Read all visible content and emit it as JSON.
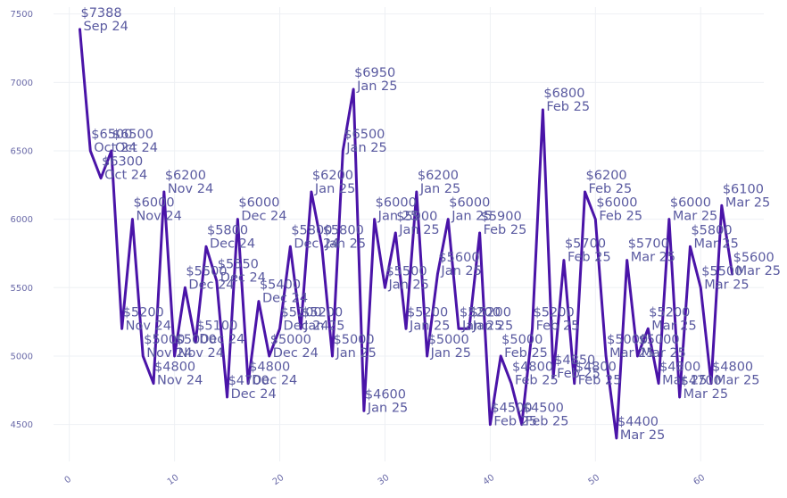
{
  "chart_data": {
    "type": "line",
    "title": "",
    "xlabel": "",
    "ylabel": "",
    "xlim": [
      -1.5,
      66
    ],
    "ylim": [
      4230,
      7550
    ],
    "xticks": [
      0,
      10,
      20,
      30,
      40,
      50,
      60
    ],
    "yticks": [
      4500,
      5000,
      5500,
      6000,
      6500,
      7000,
      7500
    ],
    "grid": true,
    "legend": "none",
    "line_color": "#4a14a8",
    "label_color": "#5a5aa0",
    "tick_color": "#6a6aa8",
    "series": [
      {
        "x": [
          1,
          2,
          3,
          4,
          5,
          6,
          7,
          8,
          9,
          10,
          11,
          12,
          13,
          14,
          15,
          16,
          17,
          18,
          19,
          20,
          21,
          22,
          23,
          24,
          25,
          26,
          27,
          28,
          29,
          30,
          31,
          32,
          33,
          34,
          35,
          36,
          37,
          38,
          39,
          40,
          41,
          42,
          43,
          44,
          45,
          46,
          47,
          48,
          49,
          50,
          51,
          52,
          53,
          54,
          55,
          56,
          57,
          58,
          59,
          60,
          61,
          62,
          63
        ],
        "y": [
          7388,
          6500,
          6300,
          6500,
          5200,
          6000,
          5000,
          4800,
          6200,
          5000,
          5500,
          5100,
          5800,
          5550,
          4700,
          6000,
          4800,
          5400,
          5000,
          5200,
          5800,
          5200,
          6200,
          5800,
          5000,
          6500,
          6950,
          4600,
          6000,
          5500,
          5900,
          5200,
          6200,
          5000,
          5600,
          6000,
          5200,
          5200,
          5900,
          4500,
          5000,
          4800,
          4500,
          5200,
          6800,
          4850,
          5700,
          4800,
          6200,
          6000,
          5000,
          4400,
          5700,
          5000,
          5200,
          4800,
          6000,
          4700,
          5800,
          5500,
          4800,
          6100,
          5600
        ],
        "labels": [
          [
            "$7388",
            "Sep 24"
          ],
          [
            "$6500",
            "Oct 24"
          ],
          [
            "$6300",
            "Oct 24"
          ],
          [
            "$6500",
            "Oct 24"
          ],
          [
            "$5200",
            "Nov 24"
          ],
          [
            "$6000",
            "Nov 24"
          ],
          [
            "$5000",
            "Nov 24"
          ],
          [
            "$4800",
            "Nov 24"
          ],
          [
            "$6200",
            "Nov 24"
          ],
          [
            "$5000",
            "Nov 24"
          ],
          [
            "$5500",
            "Dec 24"
          ],
          [
            "$5100",
            "Dec 24"
          ],
          [
            "$5800",
            "Dec 24"
          ],
          [
            "$5550",
            "Dec 24"
          ],
          [
            "$4700",
            "Dec 24"
          ],
          [
            "$6000",
            "Dec 24"
          ],
          [
            "$4800",
            "Dec 24"
          ],
          [
            "$5400",
            "Dec 24"
          ],
          [
            "$5000",
            "Dec 24"
          ],
          [
            "$5200",
            "Dec 24"
          ],
          [
            "$5800",
            "Dec 24"
          ],
          [
            "$5200",
            "Jan 25"
          ],
          [
            "$6200",
            "Jan 25"
          ],
          [
            "$5800",
            "Jan 25"
          ],
          [
            "$5000",
            "Jan 25"
          ],
          [
            "$6500",
            "Jan 25"
          ],
          [
            "$6950",
            "Jan 25"
          ],
          [
            "$4600",
            "Jan 25"
          ],
          [
            "$6000",
            "Jan 25"
          ],
          [
            "$5500",
            "Jan 25"
          ],
          [
            "$5900",
            "Jan 25"
          ],
          [
            "$5200",
            "Jan 25"
          ],
          [
            "$6200",
            "Jan 25"
          ],
          [
            "$5000",
            "Jan 25"
          ],
          [
            "$5600",
            "Jan 25"
          ],
          [
            "$6000",
            "Jan 25"
          ],
          [
            "$5200",
            "Jan 25"
          ],
          [
            "$5200",
            "Jan 25"
          ],
          [
            "$5900",
            "Feb 25"
          ],
          [
            "$4500",
            "Feb 25"
          ],
          [
            "$5000",
            "Feb 25"
          ],
          [
            "$4800",
            "Feb 25"
          ],
          [
            "$4500",
            "Feb 25"
          ],
          [
            "$5200",
            "Feb 25"
          ],
          [
            "$6800",
            "Feb 25"
          ],
          [
            "$4850",
            "Feb 25"
          ],
          [
            "$5700",
            "Feb 25"
          ],
          [
            "$4800",
            "Feb 25"
          ],
          [
            "$6200",
            "Feb 25"
          ],
          [
            "$6000",
            "Feb 25"
          ],
          [
            "$5000",
            "Mar 25"
          ],
          [
            "$4400",
            "Mar 25"
          ],
          [
            "$5700",
            "Mar 25"
          ],
          [
            "$5000",
            "Mar 25"
          ],
          [
            "$5200",
            "Mar 25"
          ],
          [
            "$4800",
            "Mar 25"
          ],
          [
            "$6000",
            "Mar 25"
          ],
          [
            "$4700",
            "Mar 25"
          ],
          [
            "$5800",
            "Mar 25"
          ],
          [
            "$5500",
            "Mar 25"
          ],
          [
            "$4800",
            "Mar 25"
          ],
          [
            "$6100",
            "Mar 25"
          ],
          [
            "$5600",
            "Mar 25"
          ]
        ]
      }
    ]
  }
}
